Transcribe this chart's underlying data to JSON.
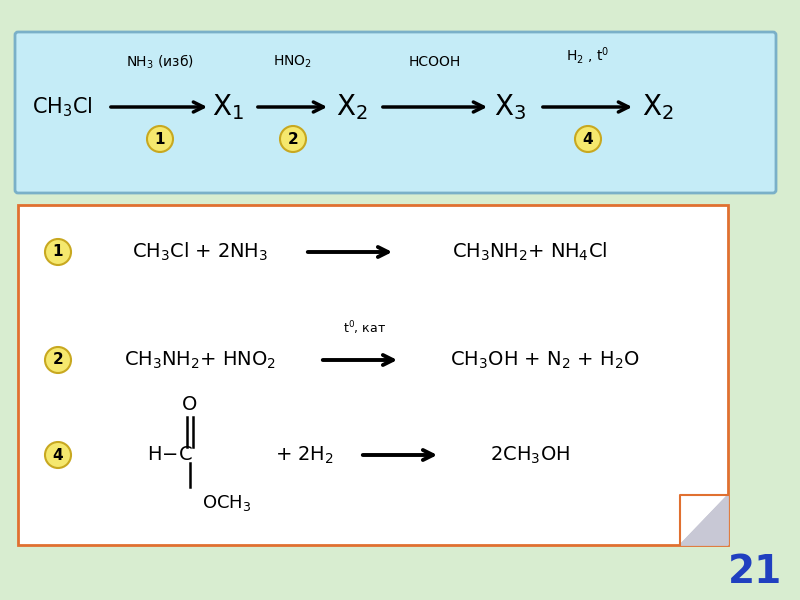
{
  "bg_color": "#d8edd0",
  "top_box_color": "#c5ecf7",
  "top_box_edge": "#7ab0c8",
  "bottom_box_color": "#ffffff",
  "bottom_box_edge": "#e07030",
  "circle_color": "#f5e86e",
  "circle_edge": "#c8a820",
  "page_number": "21",
  "page_num_color": "#2040c0"
}
